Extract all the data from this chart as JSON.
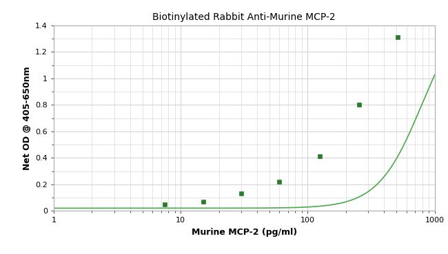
{
  "title": "Biotinylated Rabbit Anti-Murine MCP-2",
  "xlabel": "Murine MCP-2 (pg/ml)",
  "ylabel": "Net OD @ 405-650nm",
  "x_markers": [
    7.5,
    15,
    30,
    60,
    125,
    255,
    510
  ],
  "y_markers": [
    0.05,
    0.07,
    0.13,
    0.22,
    0.41,
    0.8,
    1.31
  ],
  "xlim": [
    1,
    1000
  ],
  "ylim": [
    0,
    1.4
  ],
  "yticks": [
    0,
    0.2,
    0.4,
    0.6,
    0.8,
    1,
    1.2,
    1.4
  ],
  "ytick_labels": [
    "0",
    "0.2",
    "0.4",
    "0.6",
    "0.8",
    "1",
    "1.2",
    "1.4"
  ],
  "xticks": [
    1,
    10,
    100,
    1000
  ],
  "xtick_labels": [
    "1",
    "10",
    "100",
    "1000"
  ],
  "line_color": "#4aaa4a",
  "marker_color": "#2d7a2d",
  "bg_color": "#ffffff",
  "plot_bg_color": "#ffffff",
  "grid_color": "#d0d0d0",
  "title_fontsize": 10,
  "label_fontsize": 9,
  "tick_fontsize": 8
}
